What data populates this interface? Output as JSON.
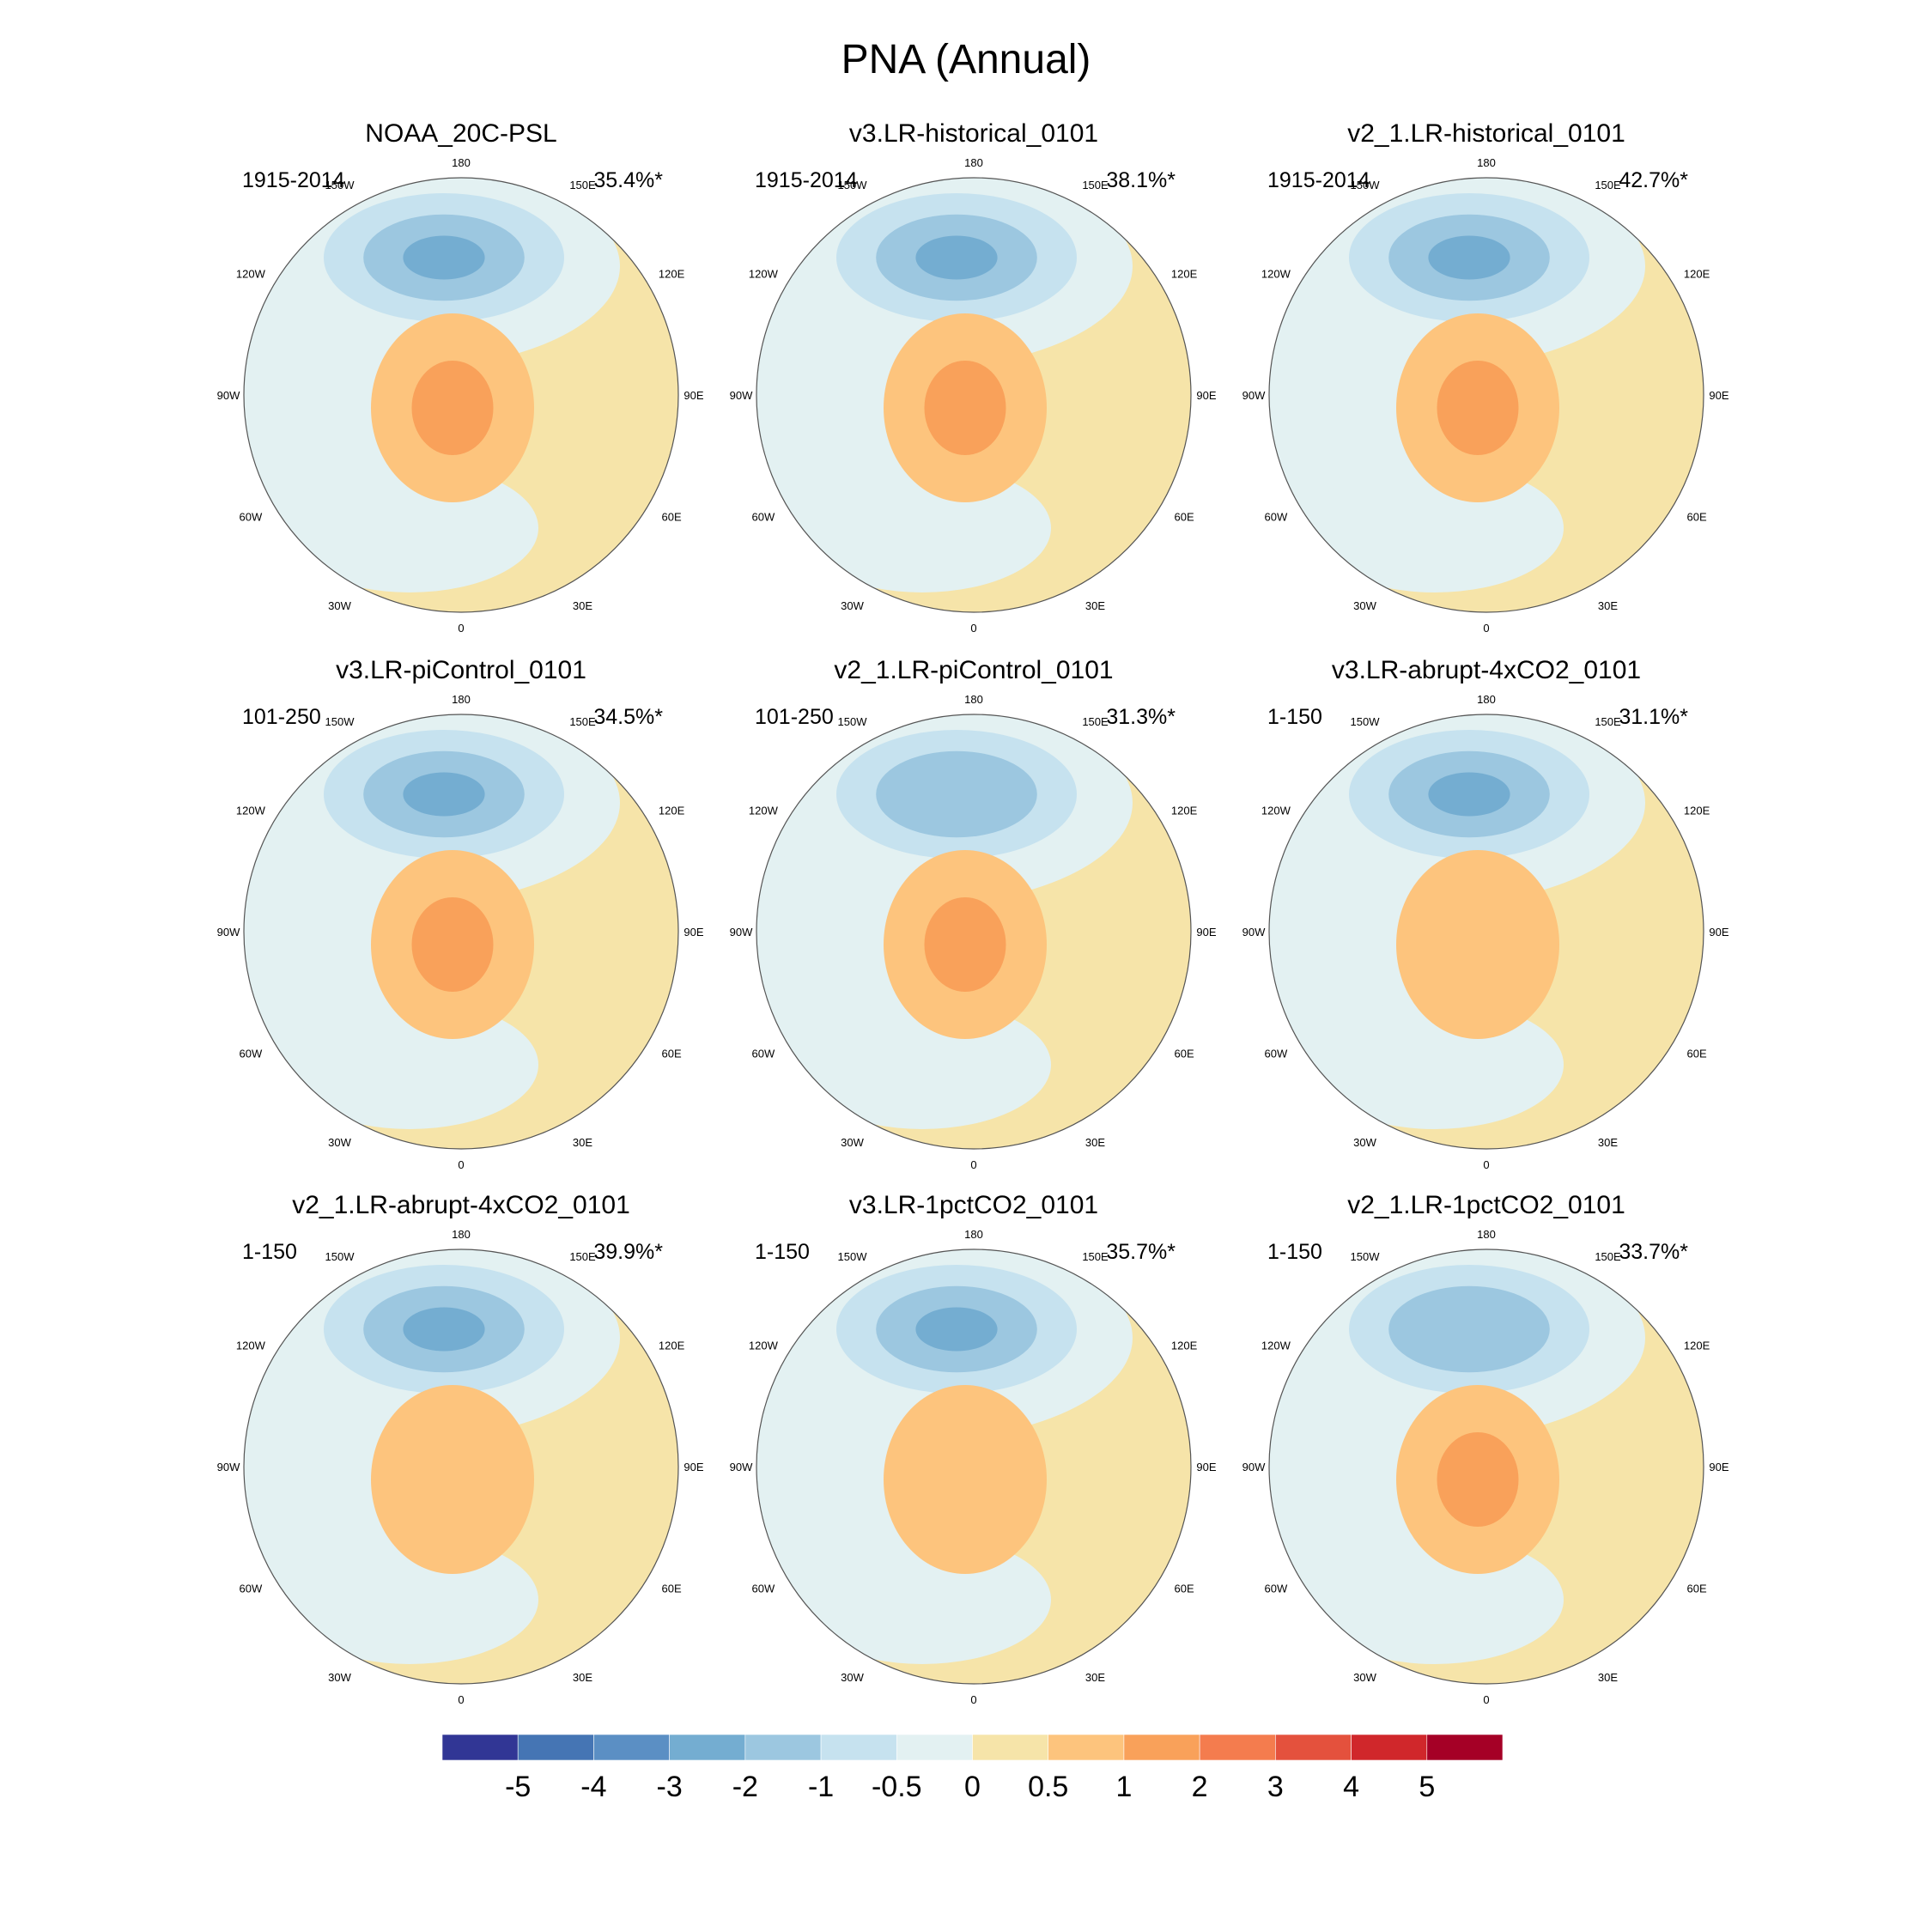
{
  "figure": {
    "title": "PNA (Annual)"
  },
  "chart_data": {
    "type": "polar-contour-maps",
    "projection": "north-polar-stereographic",
    "variable": "PNA pattern regression (sea level pressure)",
    "season": "Annual",
    "longitude_labels": [
      "180",
      "150E",
      "120E",
      "90E",
      "60E",
      "30E",
      "0",
      "30W",
      "60W",
      "90W",
      "120W",
      "150W"
    ],
    "colorbar": {
      "levels": [
        "-5",
        "-4",
        "-3",
        "-2",
        "-1",
        "-0.5",
        "0",
        "0.5",
        "1",
        "2",
        "3",
        "4",
        "5"
      ],
      "colors": [
        "#313695",
        "#4575b4",
        "#5b8fc4",
        "#74add1",
        "#9cc7e0",
        "#c6e2ef",
        "#e3f1f2",
        "#f6e4a9",
        "#fdc47d",
        "#f9a15a",
        "#f47c4e",
        "#e4513d",
        "#d0272b",
        "#a50026"
      ]
    },
    "panels": [
      {
        "title": "NOAA_20C-PSL",
        "period": "1915-2014",
        "variance": "35.4%*",
        "pacific_low_min": -2.0,
        "arctic_high_max": 1.0
      },
      {
        "title": "v3.LR-historical_0101",
        "period": "1915-2014",
        "variance": "38.1%*",
        "pacific_low_min": -2.0,
        "arctic_high_max": 1.0
      },
      {
        "title": "v2_1.LR-historical_0101",
        "period": "1915-2014",
        "variance": "42.7%*",
        "pacific_low_min": -2.0,
        "arctic_high_max": 1.0
      },
      {
        "title": "v3.LR-piControl_0101",
        "period": "101-250",
        "variance": "34.5%*",
        "pacific_low_min": -2.0,
        "arctic_high_max": 1.0
      },
      {
        "title": "v2_1.LR-piControl_0101",
        "period": "101-250",
        "variance": "31.3%*",
        "pacific_low_min": -1.0,
        "arctic_high_max": 1.0
      },
      {
        "title": "v3.LR-abrupt-4xCO2_0101",
        "period": "1-150",
        "variance": "31.1%*",
        "pacific_low_min": -2.0,
        "arctic_high_max": 0.5
      },
      {
        "title": "v2_1.LR-abrupt-4xCO2_0101",
        "period": "1-150",
        "variance": "39.9%*",
        "pacific_low_min": -2.0,
        "arctic_high_max": 0.5
      },
      {
        "title": "v3.LR-1pctCO2_0101",
        "period": "1-150",
        "variance": "35.7%*",
        "pacific_low_min": -2.0,
        "arctic_high_max": 0.5
      },
      {
        "title": "v2_1.LR-1pctCO2_0101",
        "period": "1-150",
        "variance": "33.7%*",
        "pacific_low_min": -1.0,
        "arctic_high_max": 1.0
      }
    ]
  }
}
